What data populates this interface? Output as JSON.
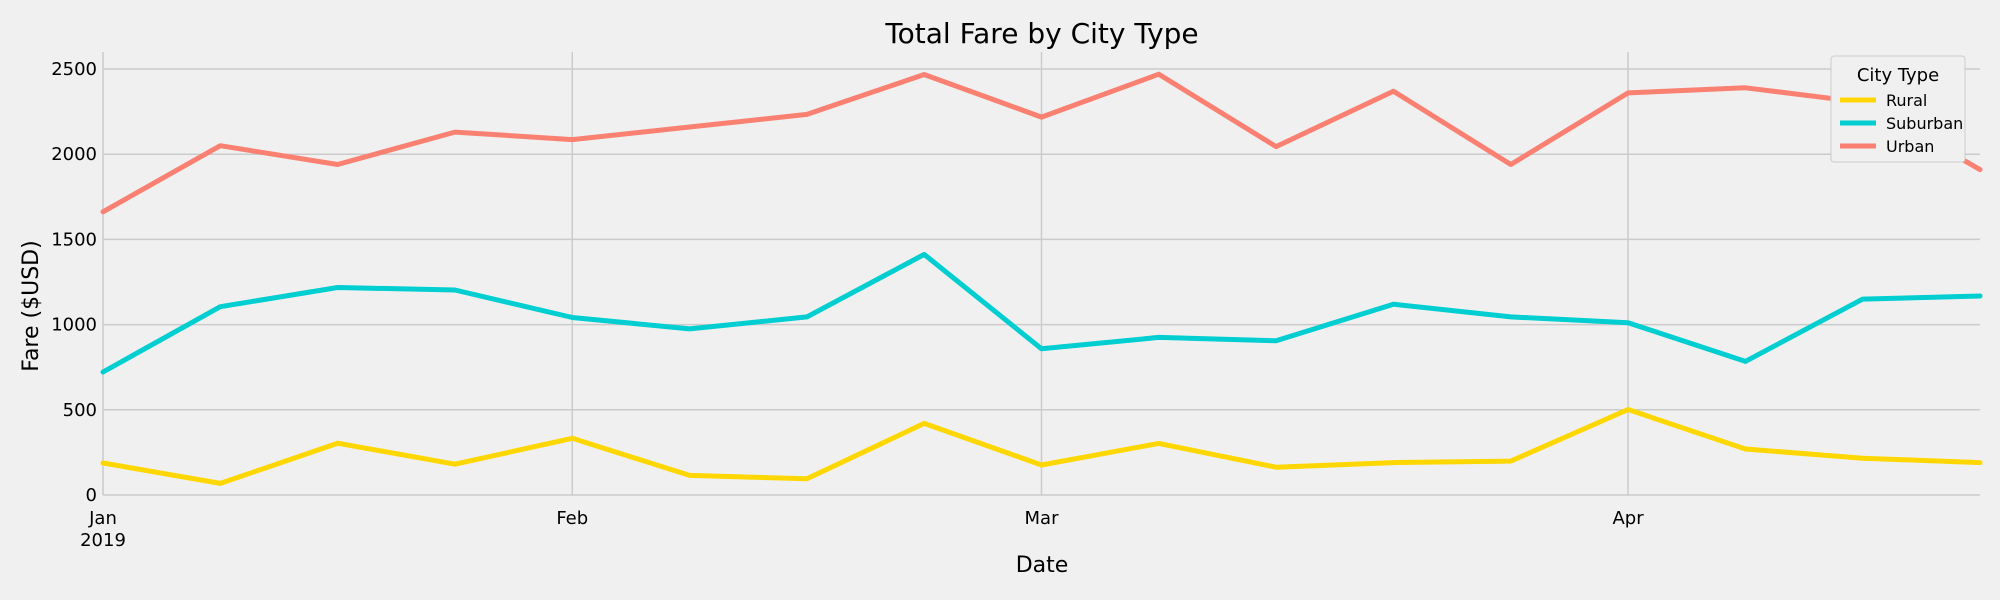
{
  "chart_data": {
    "type": "line",
    "title": "Total Fare by City Type",
    "xlabel": "Date",
    "ylabel": "Fare ($USD)",
    "x": [
      "2019-01-06",
      "2019-01-13",
      "2019-01-20",
      "2019-01-27",
      "2019-02-03",
      "2019-02-10",
      "2019-02-17",
      "2019-02-24",
      "2019-03-03",
      "2019-03-10",
      "2019-03-17",
      "2019-03-24",
      "2019-03-31",
      "2019-04-07",
      "2019-04-14",
      "2019-04-21",
      "2019-04-28"
    ],
    "xlim": [
      "2019-01-06",
      "2019-04-28"
    ],
    "ylim": [
      0,
      2600
    ],
    "yticks": [
      0,
      500,
      1000,
      1500,
      2000,
      2500
    ],
    "xticks": [
      {
        "date": "2019-01-06",
        "label": "Jan",
        "sublabel": "2019"
      },
      {
        "date": "2019-02-03",
        "label": "Feb",
        "sublabel": ""
      },
      {
        "date": "2019-03-03",
        "label": "Mar",
        "sublabel": ""
      },
      {
        "date": "2019-04-07",
        "label": "Apr",
        "sublabel": ""
      }
    ],
    "grid": true,
    "legend": {
      "title": "City Type",
      "placement": "top-right"
    },
    "series": [
      {
        "name": "Rural",
        "color": "#ffd700",
        "values": [
          188,
          68,
          304,
          181,
          333,
          115,
          95,
          420,
          176,
          303,
          163,
          190,
          199,
          502,
          270,
          216,
          190
        ]
      },
      {
        "name": "Suburban",
        "color": "#00ced1",
        "values": [
          722,
          1105,
          1218,
          1203,
          1042,
          975,
          1045,
          1412,
          858,
          925,
          905,
          1120,
          1045,
          1011,
          784,
          1150,
          1168
        ]
      },
      {
        "name": "Urban",
        "color": "#fa8072",
        "values": [
          1662,
          2050,
          1940,
          2130,
          2086,
          2160,
          2234,
          2468,
          2218,
          2470,
          2045,
          2370,
          1940,
          2360,
          2390,
          2305,
          1910
        ]
      }
    ]
  }
}
